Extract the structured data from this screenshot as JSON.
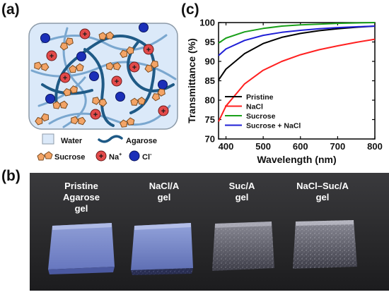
{
  "panels": {
    "a": {
      "label": "(a)",
      "legend": {
        "water": "Water",
        "agarose": "Agarose",
        "sucrose": "Sucrose",
        "na": "Na",
        "na_sup": "+",
        "cl": "Cl",
        "cl_sup": "-"
      },
      "colors": {
        "water": "#dbe9f9",
        "agarose_dark": "#1f5a86",
        "agarose_light": "#7aa7cf",
        "sucrose": "#f3a466",
        "na": "#e34a4a",
        "cl": "#1b2fb8"
      }
    },
    "b": {
      "label": "(b)",
      "samples": [
        {
          "line1": "Pristine",
          "line2": "Agarose",
          "line3": "gel"
        },
        {
          "line1": "NaCl/A",
          "line2": "gel",
          "line3": ""
        },
        {
          "line1": "Suc/A",
          "line2": "gel",
          "line3": ""
        },
        {
          "line1": "NaCl–Suc/A",
          "line2": "gel",
          "line3": ""
        }
      ]
    },
    "c": {
      "label": "(c)"
    }
  },
  "chart_data": {
    "type": "line",
    "xlabel": "Wavelength (nm)",
    "ylabel": "Transmittance (%)",
    "xlim": [
      380,
      800
    ],
    "ylim": [
      70,
      100
    ],
    "xticks": [
      400,
      500,
      600,
      700,
      800
    ],
    "yticks": [
      70,
      75,
      80,
      85,
      90,
      95,
      100
    ],
    "legend_position": "bottom-left",
    "series": [
      {
        "name": "Pristine",
        "color": "#000000",
        "x": [
          380,
          400,
          450,
          500,
          550,
          600,
          650,
          700,
          750,
          800
        ],
        "y": [
          85.2,
          88.0,
          92.0,
          94.6,
          96.2,
          97.2,
          97.9,
          98.4,
          98.8,
          99.1
        ]
      },
      {
        "name": "NaCl",
        "color": "#ff2020",
        "x": [
          380,
          400,
          450,
          500,
          550,
          600,
          650,
          700,
          750,
          800
        ],
        "y": [
          74.5,
          78.5,
          84.2,
          87.7,
          90.0,
          91.7,
          93.0,
          94.0,
          94.9,
          95.7
        ]
      },
      {
        "name": "Sucrose",
        "color": "#1aa01a",
        "x": [
          380,
          400,
          450,
          500,
          550,
          600,
          650,
          700,
          750,
          800
        ],
        "y": [
          94.7,
          96.0,
          97.6,
          98.5,
          99.1,
          99.4,
          99.6,
          99.8,
          99.9,
          100.0
        ]
      },
      {
        "name": "Sucrose + NaCl",
        "color": "#1f1fd6",
        "x": [
          380,
          400,
          450,
          500,
          550,
          600,
          650,
          700,
          750,
          800
        ],
        "y": [
          91.5,
          93.2,
          95.4,
          96.7,
          97.5,
          98.0,
          98.4,
          98.7,
          98.9,
          99.1
        ]
      }
    ]
  }
}
